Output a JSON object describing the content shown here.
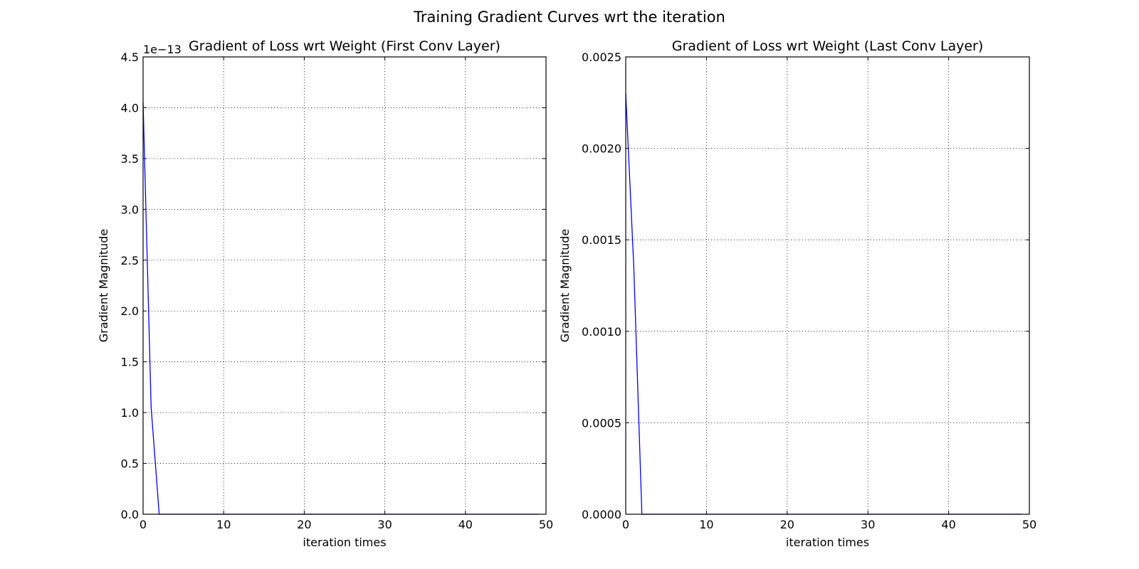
{
  "figure": {
    "suptitle": "Training Gradient Curves wrt the iteration"
  },
  "chart_data": [
    {
      "type": "line",
      "title": "Gradient of Loss wrt Weight (First Conv Layer)",
      "xlabel": "iteration times",
      "ylabel": "Gradient Magnitude",
      "xlim": [
        0,
        50
      ],
      "ylim": [
        0,
        4.5e-13
      ],
      "xticks": [
        0,
        10,
        20,
        30,
        40,
        50
      ],
      "xtick_labels": [
        "0",
        "10",
        "20",
        "30",
        "40",
        "50"
      ],
      "yticks": [
        0,
        5e-14,
        1e-13,
        1.5e-13,
        2e-13,
        2.5e-13,
        3e-13,
        3.5e-13,
        4e-13,
        4.5e-13
      ],
      "ytick_labels": [
        "0.0",
        "0.5",
        "1.0",
        "1.5",
        "2.0",
        "2.5",
        "3.0",
        "3.5",
        "4.0",
        "4.5"
      ],
      "offset_label": "1e−13",
      "grid": true,
      "line_color": "#0000ff",
      "series": [
        {
          "x": [
            0,
            1,
            2,
            3,
            4,
            5,
            6,
            7,
            8,
            9,
            10,
            11,
            12,
            13,
            14,
            15,
            16,
            17,
            18,
            19,
            20,
            21,
            22,
            23,
            24,
            25,
            26,
            27,
            28,
            29,
            30,
            31,
            32,
            33,
            34,
            35,
            36,
            37,
            38,
            39,
            40,
            41,
            42,
            43,
            44,
            45,
            46,
            47,
            48,
            49
          ],
          "values": [
            4.05e-13,
            1.05e-13,
            0,
            0,
            0,
            0,
            0,
            0,
            0,
            0,
            0,
            0,
            0,
            0,
            0,
            0,
            0,
            0,
            0,
            0,
            0,
            0,
            0,
            0,
            0,
            0,
            0,
            0,
            0,
            0,
            0,
            0,
            0,
            0,
            0,
            0,
            0,
            0,
            0,
            0,
            0,
            0,
            0,
            0,
            0,
            0,
            0,
            0,
            0,
            0
          ]
        }
      ]
    },
    {
      "type": "line",
      "title": "Gradient of Loss wrt Weight (Last Conv Layer)",
      "xlabel": "iteration times",
      "ylabel": "Gradient Magnitude",
      "xlim": [
        0,
        50
      ],
      "ylim": [
        0,
        0.0025
      ],
      "xticks": [
        0,
        10,
        20,
        30,
        40,
        50
      ],
      "xtick_labels": [
        "0",
        "10",
        "20",
        "30",
        "40",
        "50"
      ],
      "yticks": [
        0,
        0.0005,
        0.001,
        0.0015,
        0.002,
        0.0025
      ],
      "ytick_labels": [
        "0.0000",
        "0.0005",
        "0.0010",
        "0.0015",
        "0.0020",
        "0.0025"
      ],
      "offset_label": "",
      "grid": true,
      "line_color": "#0000ff",
      "series": [
        {
          "x": [
            0,
            1,
            2,
            3,
            4,
            5,
            6,
            7,
            8,
            9,
            10,
            11,
            12,
            13,
            14,
            15,
            16,
            17,
            18,
            19,
            20,
            21,
            22,
            23,
            24,
            25,
            26,
            27,
            28,
            29,
            30,
            31,
            32,
            33,
            34,
            35,
            36,
            37,
            38,
            39,
            40,
            41,
            42,
            43,
            44,
            45,
            46,
            47,
            48,
            49
          ],
          "values": [
            0.0023,
            0.00135,
            0,
            0,
            0,
            0,
            0,
            0,
            0,
            0,
            0,
            0,
            0,
            0,
            0,
            0,
            0,
            0,
            0,
            0,
            0,
            0,
            0,
            0,
            0,
            0,
            0,
            0,
            0,
            0,
            0,
            0,
            0,
            0,
            0,
            0,
            0,
            0,
            0,
            0,
            0,
            0,
            0,
            0,
            0,
            0,
            0,
            0,
            0,
            0
          ]
        }
      ]
    }
  ]
}
